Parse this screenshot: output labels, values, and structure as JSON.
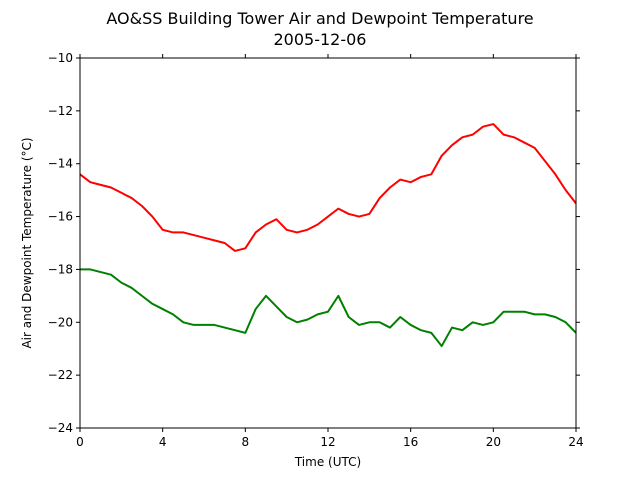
{
  "chart_data": {
    "type": "line",
    "title": "AO&SS Building Tower Air and Dewpoint Temperature",
    "subtitle": "2005-12-06",
    "xlabel": "Time (UTC)",
    "ylabel": "Air and Dewpoint Temperature (°C)",
    "xlim": [
      0,
      24
    ],
    "ylim": [
      -24,
      -10
    ],
    "xticks": [
      0,
      4,
      8,
      12,
      16,
      20,
      24
    ],
    "xtick_labels": [
      "0",
      "4",
      "8",
      "12",
      "16",
      "20",
      "24"
    ],
    "yticks": [
      -24,
      -22,
      -20,
      -18,
      -16,
      -14,
      -12,
      -10
    ],
    "ytick_labels": [
      "−24",
      "−22",
      "−20",
      "−18",
      "−16",
      "−14",
      "−12",
      "−10"
    ],
    "grid": false,
    "legend": "none",
    "series": [
      {
        "color": "#ff0000",
        "x": [
          0,
          0.5,
          1,
          1.5,
          2,
          2.5,
          3,
          3.5,
          4,
          4.5,
          5,
          5.5,
          6,
          6.5,
          7,
          7.5,
          8,
          8.5,
          9,
          9.5,
          10,
          10.5,
          11,
          11.5,
          12,
          12.5,
          13,
          13.5,
          14,
          14.5,
          15,
          15.5,
          16,
          16.5,
          17,
          17.5,
          18,
          18.5,
          19,
          19.5,
          20,
          20.5,
          21,
          21.5,
          22,
          22.5,
          23,
          23.5,
          24
        ],
        "values": [
          -14.4,
          -14.7,
          -14.8,
          -14.9,
          -15.1,
          -15.3,
          -15.6,
          -16.0,
          -16.5,
          -16.6,
          -16.6,
          -16.7,
          -16.8,
          -16.9,
          -17.0,
          -17.3,
          -17.2,
          -16.6,
          -16.3,
          -16.1,
          -16.5,
          -16.6,
          -16.5,
          -16.3,
          -16.0,
          -15.7,
          -15.9,
          -16.0,
          -15.9,
          -15.3,
          -14.9,
          -14.6,
          -14.7,
          -14.5,
          -14.4,
          -13.7,
          -13.3,
          -13.0,
          -12.9,
          -12.6,
          -12.5,
          -12.9,
          -13.0,
          -13.2,
          -13.4,
          -13.9,
          -14.4,
          -15.0,
          -15.5
        ]
      },
      {
        "color": "#008000",
        "x": [
          0,
          0.5,
          1,
          1.5,
          2,
          2.5,
          3,
          3.5,
          4,
          4.5,
          5,
          5.5,
          6,
          6.5,
          7,
          7.5,
          8,
          8.5,
          9,
          9.5,
          10,
          10.5,
          11,
          11.5,
          12,
          12.5,
          13,
          13.5,
          14,
          14.5,
          15,
          15.5,
          16,
          16.5,
          17,
          17.5,
          18,
          18.5,
          19,
          19.5,
          20,
          20.5,
          21,
          21.5,
          22,
          22.5,
          23,
          23.5,
          24
        ],
        "values": [
          -18.0,
          -18.0,
          -18.1,
          -18.2,
          -18.5,
          -18.7,
          -19.0,
          -19.3,
          -19.5,
          -19.7,
          -20.0,
          -20.1,
          -20.1,
          -20.1,
          -20.2,
          -20.3,
          -20.4,
          -19.5,
          -19.0,
          -19.4,
          -19.8,
          -20.0,
          -19.9,
          -19.7,
          -19.6,
          -19.0,
          -19.8,
          -20.1,
          -20.0,
          -20.0,
          -20.2,
          -19.8,
          -20.1,
          -20.3,
          -20.4,
          -20.9,
          -20.2,
          -20.3,
          -20.0,
          -20.1,
          -20.0,
          -19.6,
          -19.6,
          -19.6,
          -19.7,
          -19.7,
          -19.8,
          -20.0,
          -20.4
        ]
      }
    ]
  }
}
